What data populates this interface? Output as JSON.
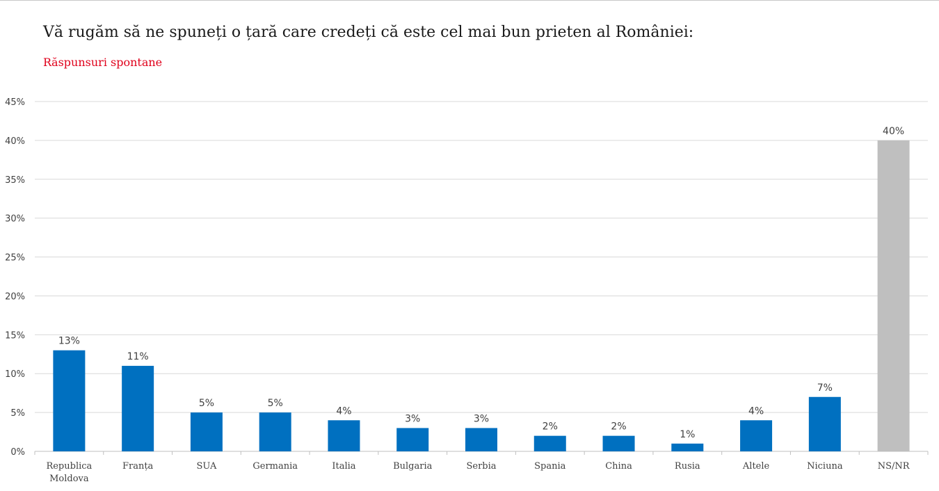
{
  "chart_data": {
    "type": "bar",
    "title": "Vă rugăm să ne spuneți o țară care credeți că este cel mai bun prieten al României:",
    "subtitle": "Răspunsuri spontane",
    "categories": [
      [
        "Republica",
        "Moldova"
      ],
      [
        "Franța"
      ],
      [
        "SUA"
      ],
      [
        "Germania"
      ],
      [
        "Italia"
      ],
      [
        "Bulgaria"
      ],
      [
        "Serbia"
      ],
      [
        "Spania"
      ],
      [
        "China"
      ],
      [
        "Rusia"
      ],
      [
        "Altele"
      ],
      [
        "Niciuna"
      ],
      [
        "NS/NR"
      ]
    ],
    "values": [
      13,
      11,
      5,
      5,
      4,
      3,
      3,
      2,
      2,
      1,
      4,
      7,
      40
    ],
    "value_labels": [
      "13%",
      "11%",
      "5%",
      "5%",
      "4%",
      "3%",
      "3%",
      "2%",
      "2%",
      "1%",
      "4%",
      "7%",
      "40%"
    ],
    "y_ticks": [
      "0%",
      "5%",
      "10%",
      "15%",
      "20%",
      "25%",
      "30%",
      "35%",
      "40%",
      "45%"
    ],
    "ylim": [
      0,
      45
    ],
    "grid": true,
    "colors": {
      "bar": "#0070c0",
      "highlight_bar": "#bfbfbf",
      "subtitle": "#e0001b",
      "grid": "#d9d9d9"
    },
    "highlight_index": 12
  }
}
